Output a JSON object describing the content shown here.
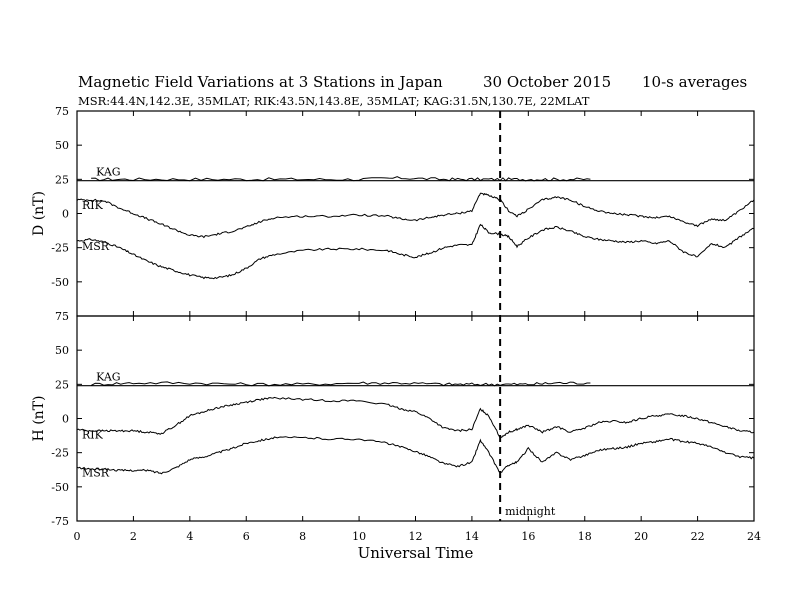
{
  "header": {
    "title": "Magnetic Field Variations at 3 Stations in Japan",
    "date": "30 October 2015",
    "averaging": "10-s averages",
    "stations_line": "MSR:44.4N,142.3E, 35MLAT;  RIK:43.5N,143.8E, 35MLAT;  KAG:31.5N,130.7E, 22MLAT"
  },
  "chart_data": {
    "type": "line",
    "xlabel": "Universal Time",
    "xlim": [
      0,
      24
    ],
    "x_ticks": [
      0,
      2,
      4,
      6,
      8,
      10,
      12,
      14,
      16,
      18,
      20,
      22,
      24
    ],
    "annotation": {
      "x": 15,
      "label": "midnight",
      "style": "dashed vertical line"
    },
    "panels": [
      {
        "id": "D",
        "ylabel": "D (nT)",
        "ylim": [
          -75,
          75
        ],
        "y_ticks": [
          75,
          50,
          25,
          0,
          -25,
          -50,
          -75
        ],
        "baseline": 24,
        "series": [
          {
            "name": "KAG",
            "x": [
              0.5,
              2,
              4,
              6,
              8,
              10,
              11.5,
              13,
              14,
              15,
              16,
              17,
              18.2
            ],
            "y": [
              25,
              25,
              25,
              25,
              25,
              25,
              26,
              25,
              25,
              25,
              25,
              25,
              25
            ]
          },
          {
            "name": "RIK",
            "x": [
              0,
              0.5,
              1,
              1.5,
              2,
              2.5,
              3,
              3.5,
              4,
              4.5,
              5,
              5.5,
              6,
              6.5,
              7,
              8,
              9,
              10,
              11,
              11.5,
              12,
              12.5,
              13,
              13.5,
              14,
              14.3,
              14.6,
              15,
              15.3,
              15.6,
              16,
              16.5,
              17,
              17.5,
              18,
              18.5,
              19,
              19.5,
              20,
              20.5,
              21,
              21.5,
              22,
              22.5,
              23,
              23.5,
              24
            ],
            "y": [
              10,
              10,
              9,
              4,
              0,
              -4,
              -8,
              -12,
              -16,
              -17,
              -15,
              -13,
              -10,
              -6,
              -3,
              -2,
              -2,
              -1,
              -2,
              -4,
              -5,
              -3,
              -1,
              0,
              2,
              15,
              13,
              10,
              2,
              -2,
              3,
              10,
              12,
              10,
              5,
              2,
              0,
              -1,
              -2,
              -3,
              -2,
              -6,
              -9,
              -4,
              -5,
              2,
              10
            ]
          },
          {
            "name": "MSR",
            "x": [
              0,
              0.5,
              1,
              1.5,
              2,
              2.5,
              3,
              3.5,
              4,
              4.5,
              5,
              5.5,
              6,
              6.5,
              7,
              8,
              9,
              10,
              11,
              11.5,
              12,
              12.5,
              13,
              13.5,
              14,
              14.3,
              14.6,
              15,
              15.3,
              15.6,
              16,
              16.5,
              17,
              17.5,
              18,
              18.5,
              19,
              19.5,
              20,
              20.5,
              21,
              21.5,
              22,
              22.5,
              23,
              23.5,
              24
            ],
            "y": [
              -20,
              -19,
              -21,
              -25,
              -30,
              -35,
              -39,
              -42,
              -45,
              -47,
              -47,
              -45,
              -40,
              -33,
              -30,
              -27,
              -26,
              -26,
              -27,
              -30,
              -32,
              -29,
              -25,
              -23,
              -23,
              -8,
              -14,
              -15,
              -17,
              -24,
              -18,
              -12,
              -10,
              -13,
              -17,
              -19,
              -20,
              -21,
              -20,
              -22,
              -20,
              -28,
              -32,
              -22,
              -25,
              -17,
              -11
            ]
          }
        ]
      },
      {
        "id": "H",
        "ylabel": "H (nT)",
        "ylim": [
          -75,
          75
        ],
        "y_ticks": [
          75,
          50,
          25,
          0,
          -25,
          -50,
          -75
        ],
        "baseline": 24,
        "series": [
          {
            "name": "KAG",
            "x": [
              0.5,
              2,
              4,
              6,
              8,
              10,
              11.5,
              13,
              14,
              15,
              16,
              17,
              18.2
            ],
            "y": [
              25,
              26,
              26,
              25,
              25,
              26,
              26,
              25,
              25,
              25,
              25,
              26,
              26
            ]
          },
          {
            "name": "RIK",
            "x": [
              0,
              0.5,
              1,
              1.5,
              2,
              2.5,
              3,
              3.5,
              4,
              4.5,
              5,
              5.5,
              6,
              6.5,
              7,
              8,
              9,
              10,
              11,
              11.5,
              12,
              12.5,
              13,
              13.5,
              14,
              14.3,
              14.6,
              15,
              15.3,
              15.6,
              16,
              16.5,
              17,
              17.5,
              18,
              18.5,
              19,
              19.5,
              20,
              20.5,
              21,
              21.5,
              22,
              22.5,
              23,
              23.5,
              24
            ],
            "y": [
              -8,
              -9,
              -9,
              -9,
              -9,
              -10,
              -11,
              -5,
              2,
              5,
              8,
              10,
              12,
              14,
              15,
              14,
              13,
              13,
              10,
              7,
              5,
              0,
              -7,
              -9,
              -8,
              7,
              2,
              -14,
              -10,
              -8,
              -5,
              -10,
              -6,
              -10,
              -7,
              -3,
              -2,
              -3,
              0,
              2,
              3,
              2,
              0,
              -3,
              -6,
              -9,
              -10
            ]
          },
          {
            "name": "MSR",
            "x": [
              0,
              0.5,
              1,
              1.5,
              2,
              2.5,
              3,
              3.5,
              4,
              4.5,
              5,
              5.5,
              6,
              6.5,
              7,
              8,
              9,
              10,
              11,
              11.5,
              12,
              12.5,
              13,
              13.5,
              14,
              14.3,
              14.6,
              15,
              15.3,
              15.6,
              16,
              16.5,
              17,
              17.5,
              18,
              18.5,
              19,
              19.5,
              20,
              20.5,
              21,
              21.5,
              22,
              22.5,
              23,
              23.5,
              24
            ],
            "y": [
              -36,
              -37,
              -37,
              -38,
              -38,
              -38,
              -40,
              -36,
              -30,
              -28,
              -25,
              -22,
              -18,
              -16,
              -14,
              -14,
              -15,
              -15,
              -18,
              -21,
              -24,
              -28,
              -33,
              -35,
              -32,
              -16,
              -25,
              -40,
              -34,
              -32,
              -22,
              -32,
              -25,
              -30,
              -27,
              -23,
              -22,
              -21,
              -18,
              -17,
              -15,
              -17,
              -18,
              -21,
              -25,
              -28,
              -29
            ]
          }
        ]
      }
    ]
  }
}
